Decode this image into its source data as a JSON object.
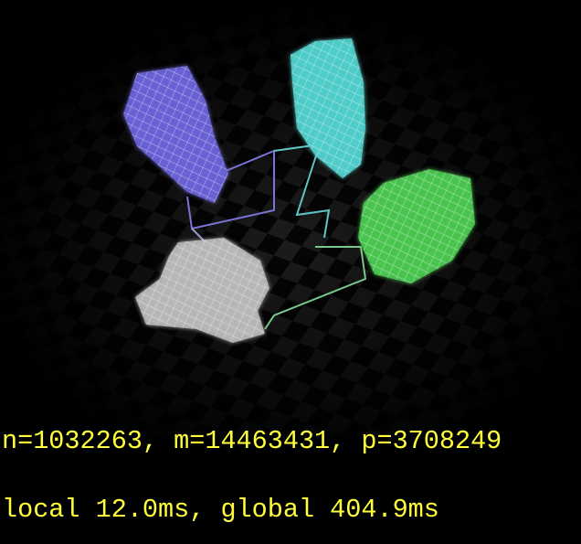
{
  "overlay": {
    "lines": [
      "n=1032263, m=14463431, p=3708249",
      "local 12.0ms, global 404.9ms"
    ]
  }
}
